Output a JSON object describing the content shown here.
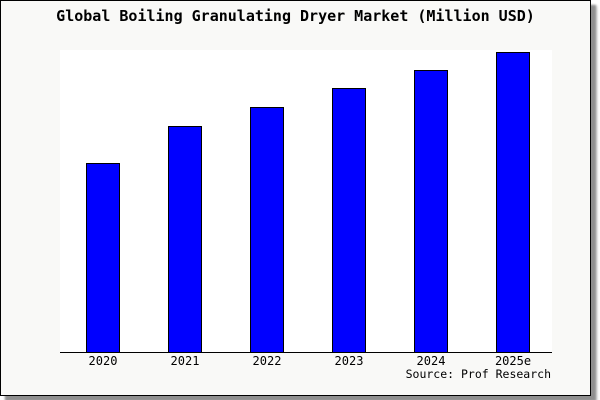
{
  "title": "Global Boiling Granulating Dryer Market (Million USD)",
  "source_note": "Source: Prof Research",
  "chart_data": {
    "type": "bar",
    "title": "Global Boiling Granulating Dryer Market (Million USD)",
    "categories": [
      "2020",
      "2021",
      "2022",
      "2023",
      "2024",
      "2025e"
    ],
    "values": [
      62.9,
      75.2,
      81.5,
      87.9,
      93.8,
      100
    ],
    "values_note": "no y-axis or data labels shown; values estimated from bar pixel heights, normalized to 2025e = 100",
    "xlabel": "",
    "ylabel": "",
    "ylim": [
      0,
      100.5
    ],
    "grid": false,
    "legend": false,
    "y_axis_visible": false,
    "colors": {
      "bar_fill": "#0000ff",
      "bar_border": "#000000",
      "plot_background": "#ffffff",
      "figure_background": "#f9f9f7",
      "frame_border": "#000000",
      "text": "#000000"
    }
  }
}
